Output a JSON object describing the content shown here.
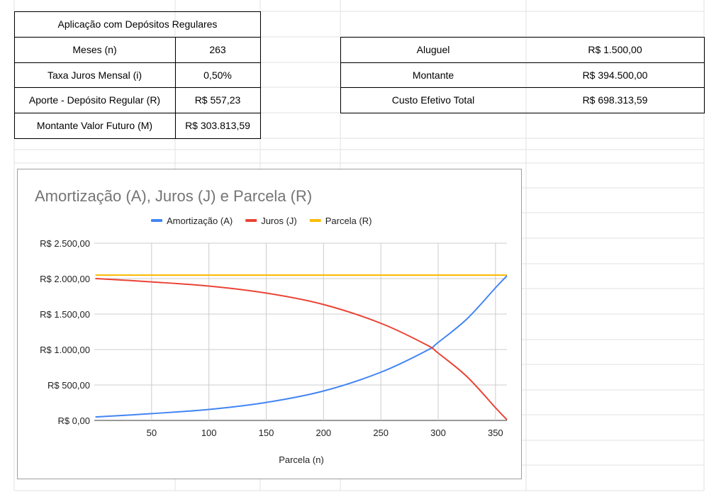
{
  "table1": {
    "header": "Aplicação com Depósitos Regulares",
    "rows": [
      {
        "label": "Meses (n)",
        "value": "263"
      },
      {
        "label": "Taxa Juros Mensal (i)",
        "value": "0,50%"
      },
      {
        "label": "Aporte - Depósito Regular (R)",
        "value": "R$ 557,23"
      },
      {
        "label": "Montante Valor Futuro (M)",
        "value": "R$ 303.813,59"
      }
    ]
  },
  "table2": {
    "rows": [
      {
        "label": "Aluguel",
        "value": "R$ 1.500,00"
      },
      {
        "label": "Montante",
        "value": "R$ 394.500,00"
      },
      {
        "label": "Custo Efetivo Total",
        "value": "R$ 698.313,59"
      }
    ]
  },
  "chart_data": {
    "type": "line",
    "title": "Amortização (A), Juros (J) e Parcela (R)",
    "xlabel": "Parcela (n)",
    "ylabel": "",
    "xlim": [
      0,
      360
    ],
    "ylim": [
      0,
      2500
    ],
    "x_ticks": [
      "50",
      "100",
      "150",
      "200",
      "250",
      "300",
      "350"
    ],
    "y_ticks": [
      "R$ 0,00",
      "R$ 500,00",
      "R$ 1.000,00",
      "R$ 1.500,00",
      "R$ 2.000,00",
      "R$ 2.500,00"
    ],
    "grid": true,
    "legend_position": "top",
    "x": [
      1,
      50,
      100,
      150,
      200,
      250,
      290,
      300,
      325,
      350,
      360
    ],
    "series": [
      {
        "name": "Amortização (A)",
        "color": "#4285f4",
        "values": [
          49,
          96,
          155,
          254,
          415,
          680,
          985,
          1100,
          1430,
          1870,
          2040
        ]
      },
      {
        "name": "Juros (J)",
        "color": "#ea4335",
        "values": [
          2001,
          1954,
          1895,
          1796,
          1635,
          1370,
          1065,
          950,
          620,
          180,
          10
        ]
      },
      {
        "name": "Parcela (R)",
        "color": "#fbbc04",
        "values": [
          2050,
          2050,
          2050,
          2050,
          2050,
          2050,
          2050,
          2050,
          2050,
          2050,
          2050
        ]
      }
    ]
  }
}
